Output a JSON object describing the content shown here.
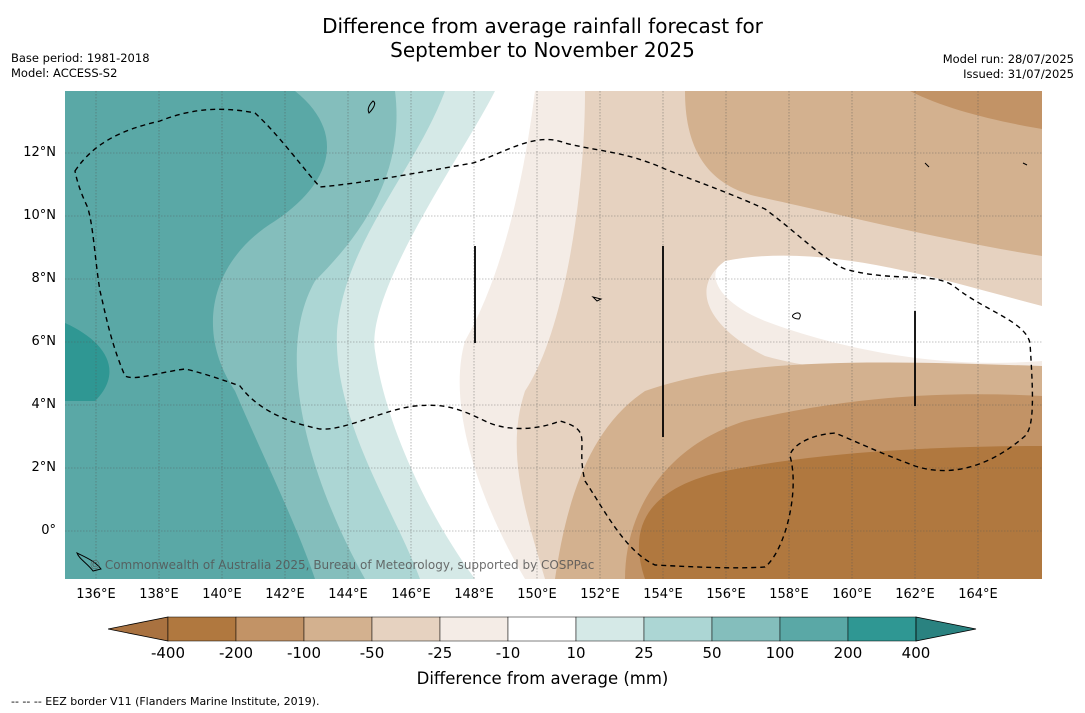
{
  "title_line1": "Difference from average rainfall forecast for",
  "title_line2": "September to November 2025",
  "meta_left": [
    "Base period: 1981-2018",
    "Model: ACCESS-S2"
  ],
  "meta_right": [
    "Model run: 28/07/2025",
    "Issued: 31/07/2025"
  ],
  "y_ticks": [
    "12°N",
    "10°N",
    "8°N",
    "6°N",
    "4°N",
    "2°N",
    "0°"
  ],
  "x_ticks": [
    "136°E",
    "138°E",
    "140°E",
    "142°E",
    "144°E",
    "146°E",
    "148°E",
    "150°E",
    "152°E",
    "154°E",
    "156°E",
    "158°E",
    "160°E",
    "162°E",
    "164°E"
  ],
  "colorbar": {
    "labels": [
      "-400",
      "-200",
      "-100",
      "-50",
      "-25",
      "-10",
      "10",
      "25",
      "50",
      "100",
      "200",
      "400"
    ],
    "colors": [
      "#a97240",
      "#b0783f",
      "#c29366",
      "#d3b18f",
      "#e6d2c0",
      "#f4ece6",
      "#ffffff",
      "#d5e9e7",
      "#acd6d4",
      "#84bebc",
      "#5aa8a6",
      "#2f9793",
      "#2a8280"
    ],
    "title": "Difference from average (mm)"
  },
  "copyright": "© Commonwealth of Australia 2025, Bureau of Meteorology, supported by COSPPac",
  "footer": "--  --  -- EEZ border V11 (Flanders Marine Institute, 2019)."
}
